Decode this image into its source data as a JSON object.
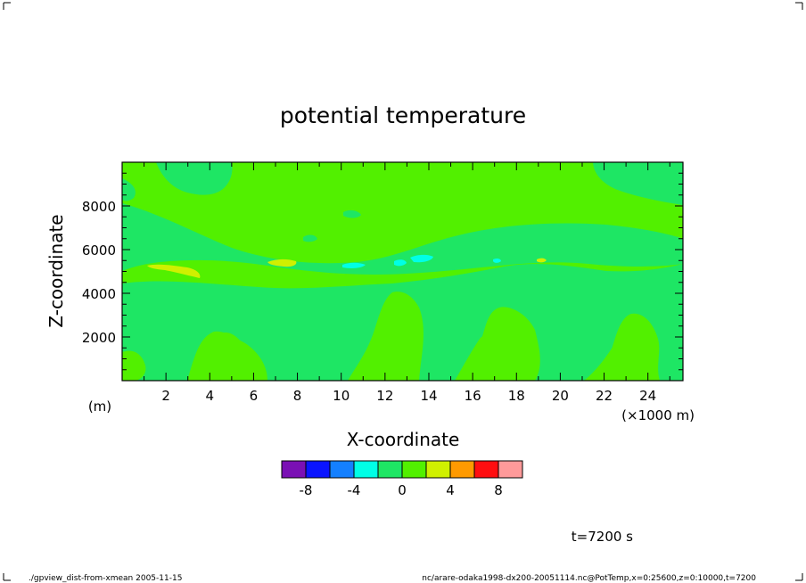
{
  "chart_data": {
    "type": "heatmap",
    "title": "potential temperature",
    "xlabel": "X-coordinate",
    "ylabel": "Z-coordinate",
    "x_unit": "(×1000 m)",
    "y_unit": "(m)",
    "xlim": [
      0,
      25.6
    ],
    "ylim": [
      0,
      10000
    ],
    "x_ticks": [
      2,
      4,
      6,
      8,
      10,
      12,
      14,
      16,
      18,
      20,
      22,
      24
    ],
    "y_ticks": [
      2000,
      4000,
      6000,
      8000
    ],
    "colorbar": {
      "levels": [
        -10,
        -8,
        -6,
        -4,
        -2,
        0,
        2,
        4,
        6,
        8,
        10
      ],
      "colors": [
        "#7a10b4",
        "#0a14ff",
        "#1480ff",
        "#00ffe6",
        "#1ee664",
        "#52f000",
        "#d0f000",
        "#ff9a00",
        "#ff0e10",
        "#ff9a9a"
      ],
      "tick_labels": [
        "-8",
        "-4",
        "0",
        "4",
        "8"
      ],
      "tick_values": [
        -8,
        -4,
        0,
        4,
        8
      ]
    },
    "regions": [
      {
        "value": 1,
        "note": "background field"
      },
      {
        "value": -1,
        "shape": "low-level band and lower cells"
      },
      {
        "value": -1,
        "shape": "upper-right cell"
      },
      {
        "value": -1,
        "shape": "mid-level band"
      },
      {
        "value": -1,
        "shape": "upper-left cells"
      },
      {
        "value": 3,
        "shape": "yellow anomalies near z=5200 m"
      },
      {
        "value": -3,
        "shape": "cyan anomalies near z=5300 m"
      }
    ],
    "time_label": "t=7200 s"
  },
  "footer": {
    "left": "./gpview_dist-from-xmean  2005-11-15",
    "right": "nc/arare-odaka1998-dx200-20051114.nc@PotTemp,x=0:25600,z=0:10000,t=7200"
  },
  "colors": {
    "background": "#ffffff",
    "frame": "#000000"
  }
}
